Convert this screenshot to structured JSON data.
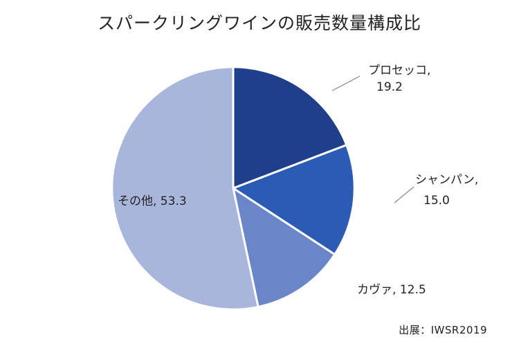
{
  "chart_data": {
    "type": "pie",
    "title": "スパークリングワインの販売数量構成比",
    "source": "出展：IWSR2019",
    "slices": [
      {
        "name": "プロセッコ",
        "value": 19.2,
        "color": "#1f3f8a",
        "label_color": "#d42b2b"
      },
      {
        "name": "シャンパン",
        "value": 15.0,
        "color": "#2c5bb3",
        "label_color": "#222222"
      },
      {
        "name": "カヴァ",
        "value": 12.5,
        "color": "#6a85c8",
        "label_color": "#222222"
      },
      {
        "name": "その他",
        "value": 53.3,
        "color": "#a9b6dc",
        "label_color": "#222222"
      }
    ]
  }
}
